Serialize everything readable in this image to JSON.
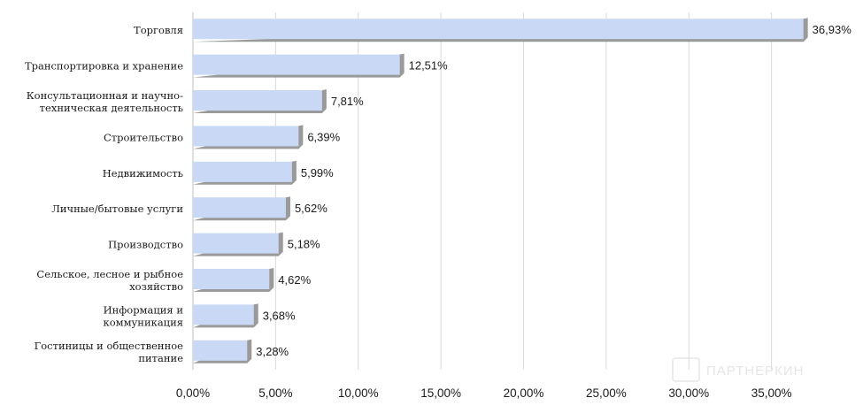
{
  "chart_data": {
    "type": "bar",
    "orientation": "horizontal",
    "categories": [
      [
        "Торговля"
      ],
      [
        "Транспортировка и хранение"
      ],
      [
        "Консультационная и научно-",
        "техническая деятельность"
      ],
      [
        "Строительство"
      ],
      [
        "Недвижимость"
      ],
      [
        "Личные/бытовые услуги"
      ],
      [
        "Производство"
      ],
      [
        "Сельское, лесное и рыбное",
        "хозяйство"
      ],
      [
        "Информация и",
        "коммуникация"
      ],
      [
        "Гостиницы и общественное",
        "питание"
      ]
    ],
    "values": [
      36.93,
      12.51,
      7.81,
      6.39,
      5.99,
      5.62,
      5.18,
      4.62,
      3.68,
      3.28
    ],
    "value_labels": [
      "36,93%",
      "12,51%",
      "7,81%",
      "6,39%",
      "5,99%",
      "5,62%",
      "5,18%",
      "4,62%",
      "3,68%",
      "3,28%"
    ],
    "x_ticks": [
      0,
      5,
      10,
      15,
      20,
      25,
      30,
      35
    ],
    "x_tick_labels": [
      "0,00%",
      "5,00%",
      "10,00%",
      "15,00%",
      "20,00%",
      "25,00%",
      "30,00%",
      "35,00%"
    ],
    "xlim": [
      0,
      40
    ],
    "grid": "vertical",
    "legend": "none",
    "title": "",
    "xlabel": "",
    "ylabel": "",
    "colors": {
      "bar": "#c9d9f5",
      "bar_shadow": "#9a9a9a",
      "grid": "#d9d9d9",
      "axis": "#bfbfbf"
    }
  },
  "watermark": {
    "text": "ПАРТНЕРКИН"
  }
}
